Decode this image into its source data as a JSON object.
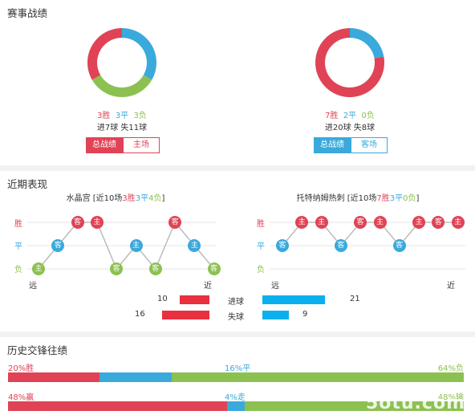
{
  "section1": {
    "title": "赛事战绩",
    "left": {
      "win": "3胜",
      "draw": "3平",
      "loss": "3负",
      "goals": "进7球 失11球",
      "pie": {
        "win": 3,
        "draw": 3,
        "loss": 3
      },
      "btn_total": "总战绩",
      "btn_venue": "主场"
    },
    "right": {
      "win": "7胜",
      "draw": "2平",
      "loss": "0负",
      "goals": "进20球 失8球",
      "pie": {
        "win": 7,
        "draw": 2,
        "loss": 0
      },
      "btn_total": "总战绩",
      "btn_venue": "客场"
    }
  },
  "section2": {
    "title": "近期表现",
    "rows": {
      "win": "胜",
      "draw": "平",
      "loss": "负"
    },
    "far": "远",
    "near": "近",
    "left": {
      "team": "水晶宫",
      "summary_pre": " [近10场",
      "win": "3胜",
      "draw": "3平",
      "loss": "4负",
      "summary_post": "]",
      "results": [
        {
          "r": "loss",
          "v": "主"
        },
        {
          "r": "draw",
          "v": "客"
        },
        {
          "r": "win",
          "v": "客"
        },
        {
          "r": "win",
          "v": "主"
        },
        {
          "r": "loss",
          "v": "客"
        },
        {
          "r": "draw",
          "v": "主"
        },
        {
          "r": "loss",
          "v": "客"
        },
        {
          "r": "win",
          "v": "客"
        },
        {
          "r": "draw",
          "v": "主"
        },
        {
          "r": "loss",
          "v": "客"
        }
      ]
    },
    "right": {
      "team": "托特纳姆热刺",
      "summary_pre": " [近10场",
      "win": "7胜",
      "draw": "3平",
      "loss": "0负",
      "summary_post": "]",
      "results": [
        {
          "r": "draw",
          "v": "客"
        },
        {
          "r": "win",
          "v": "主"
        },
        {
          "r": "win",
          "v": "主"
        },
        {
          "r": "draw",
          "v": "客"
        },
        {
          "r": "win",
          "v": "客"
        },
        {
          "r": "win",
          "v": "主"
        },
        {
          "r": "draw",
          "v": "客"
        },
        {
          "r": "win",
          "v": "主"
        },
        {
          "r": "win",
          "v": "客"
        },
        {
          "r": "win",
          "v": "主"
        }
      ]
    },
    "goals": {
      "scored_label": "进球",
      "conceded_label": "失球",
      "home_scored": 10,
      "away_scored": 21,
      "home_conceded": 16,
      "away_conceded": 9
    }
  },
  "section3": {
    "title": "历史交锋往绩",
    "bar1": {
      "left": "20%胜",
      "mid": "16%平",
      "right": "64%负",
      "a": 20,
      "b": 16,
      "c": 64
    },
    "bar2": {
      "left": "48%赢",
      "mid": "4%走",
      "right": "48%输",
      "a": 48,
      "b": 4,
      "c": 48
    }
  },
  "colors": {
    "red": "#e04355",
    "blue": "#3aa9dc",
    "green": "#8cc151",
    "bar_red": "#e8303e",
    "bar_blue": "#0ab0ee"
  },
  "watermark": "5otu.com"
}
